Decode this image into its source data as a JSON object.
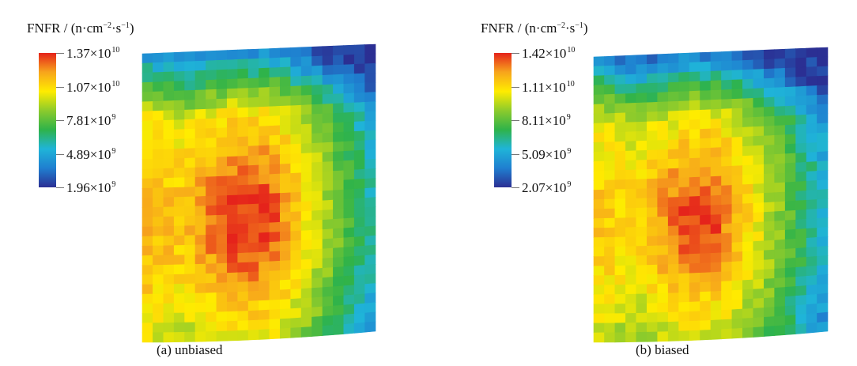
{
  "chart_data": [
    {
      "type": "heatmap",
      "panel": "a",
      "caption": "(a) unbiased",
      "colorbar_title": "FNFR / (n·cm",
      "colorbar_title_exp1": "−2",
      "colorbar_title_mid": "·s",
      "colorbar_title_exp2": "−1",
      "colorbar_title_end": ")",
      "colorbar_ticks": [
        {
          "mantissa": "1.37×10",
          "exponent": "10",
          "value": 13700000000
        },
        {
          "mantissa": "1.07×10",
          "exponent": "10",
          "value": 10700000000
        },
        {
          "mantissa": "7.81×10",
          "exponent": "9",
          "value": 7810000000
        },
        {
          "mantissa": "4.89×10",
          "exponent": "9",
          "value": 4890000000
        },
        {
          "mantissa": "1.96×10",
          "exponent": "9",
          "value": 1960000000
        }
      ],
      "value_range": [
        1960000000,
        13700000000
      ],
      "colormap": [
        "#2b2f93",
        "#1f7fd0",
        "#1fb4d8",
        "#2fb34a",
        "#8ccb2c",
        "#ffec00",
        "#f7a51c",
        "#e5231b"
      ],
      "grid": {
        "cols": 22,
        "rows": 30
      }
    },
    {
      "type": "heatmap",
      "panel": "b",
      "caption": "(b) biased",
      "colorbar_title": "FNFR / (n·cm",
      "colorbar_title_exp1": "−2",
      "colorbar_title_mid": "·s",
      "colorbar_title_exp2": "−1",
      "colorbar_title_end": ")",
      "colorbar_ticks": [
        {
          "mantissa": "1.42×10",
          "exponent": "10",
          "value": 14200000000
        },
        {
          "mantissa": "1.11×10",
          "exponent": "10",
          "value": 11100000000
        },
        {
          "mantissa": "8.11×10",
          "exponent": "9",
          "value": 8110000000
        },
        {
          "mantissa": "5.09×10",
          "exponent": "9",
          "value": 5090000000
        },
        {
          "mantissa": "2.07×10",
          "exponent": "9",
          "value": 2070000000
        }
      ],
      "value_range": [
        2070000000,
        14200000000
      ],
      "colormap": [
        "#2b2f93",
        "#1f7fd0",
        "#1fb4d8",
        "#2fb34a",
        "#8ccb2c",
        "#ffec00",
        "#f7a51c",
        "#e5231b"
      ],
      "grid": {
        "cols": 22,
        "rows": 30
      }
    }
  ]
}
